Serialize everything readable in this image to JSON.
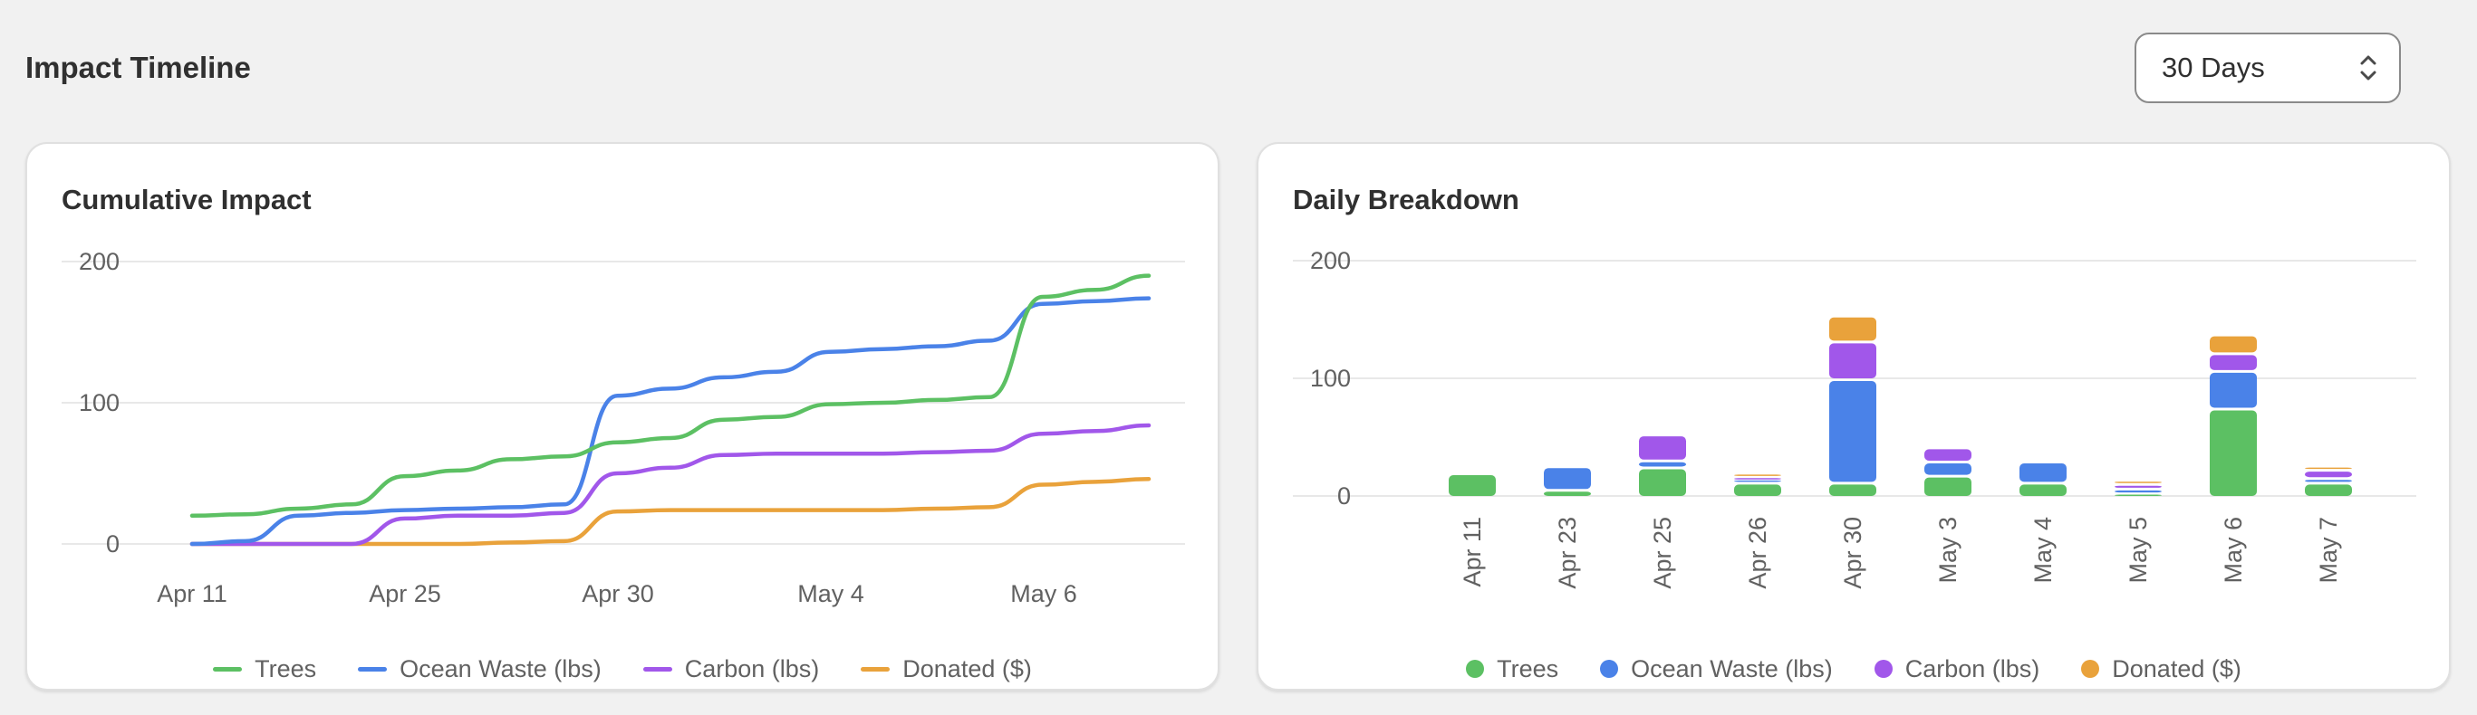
{
  "header": {
    "title": "Impact Timeline",
    "range_select": {
      "value": "30 Days"
    }
  },
  "colors": {
    "trees": "#5cc063",
    "ocean": "#4a82e8",
    "carbon": "#a157ea",
    "donated": "#e9a23b",
    "grid": "#e8e8e8",
    "tick": "#616161"
  },
  "chart_data": [
    {
      "type": "line",
      "title": "Cumulative Impact",
      "ylim": [
        0,
        200
      ],
      "yticks": [
        0,
        100,
        200
      ],
      "x_labels": [
        "Apr 11",
        "Apr 25",
        "Apr 30",
        "May 4",
        "May 6"
      ],
      "grid": true,
      "legend_position": "bottom",
      "series": [
        {
          "name": "Trees",
          "color": "#5cc063",
          "values": [
            20,
            21,
            25,
            28,
            48,
            52,
            60,
            62,
            72,
            75,
            88,
            90,
            99,
            100,
            102,
            104,
            175,
            180,
            190
          ]
        },
        {
          "name": "Ocean Waste (lbs)",
          "color": "#4a82e8",
          "values": [
            0,
            2,
            20,
            22,
            24,
            25,
            26,
            28,
            105,
            110,
            118,
            122,
            136,
            138,
            140,
            144,
            170,
            172,
            174
          ]
        },
        {
          "name": "Carbon (lbs)",
          "color": "#a157ea",
          "values": [
            0,
            0,
            0,
            0,
            18,
            20,
            20,
            22,
            50,
            54,
            63,
            64,
            64,
            64,
            65,
            66,
            78,
            80,
            84
          ]
        },
        {
          "name": "Donated ($)",
          "color": "#e9a23b",
          "values": [
            0,
            0,
            0,
            0,
            0,
            0,
            1,
            2,
            23,
            24,
            24,
            24,
            24,
            24,
            25,
            26,
            42,
            44,
            46
          ]
        }
      ]
    },
    {
      "type": "bar",
      "stacked": true,
      "title": "Daily Breakdown",
      "ylim": [
        0,
        200
      ],
      "yticks": [
        0,
        100,
        200
      ],
      "categories": [
        "Apr 11",
        "Apr 23",
        "Apr 25",
        "Apr 26",
        "Apr 30",
        "May 3",
        "May 4",
        "May 5",
        "May 6",
        "May 7"
      ],
      "grid": true,
      "legend_position": "bottom",
      "series": [
        {
          "name": "Trees",
          "color": "#5cc063",
          "values": [
            20,
            6,
            25,
            12,
            12,
            18,
            12,
            3,
            75,
            12
          ]
        },
        {
          "name": "Ocean Waste (lbs)",
          "color": "#4a82e8",
          "values": [
            0,
            20,
            6,
            2,
            88,
            12,
            18,
            4,
            32,
            4
          ]
        },
        {
          "name": "Carbon (lbs)",
          "color": "#a157ea",
          "values": [
            0,
            0,
            22,
            3,
            32,
            12,
            0,
            4,
            15,
            7
          ]
        },
        {
          "name": "Donated ($)",
          "color": "#e9a23b",
          "values": [
            0,
            0,
            0,
            2,
            22,
            0,
            0,
            2,
            16,
            2
          ]
        }
      ]
    }
  ]
}
